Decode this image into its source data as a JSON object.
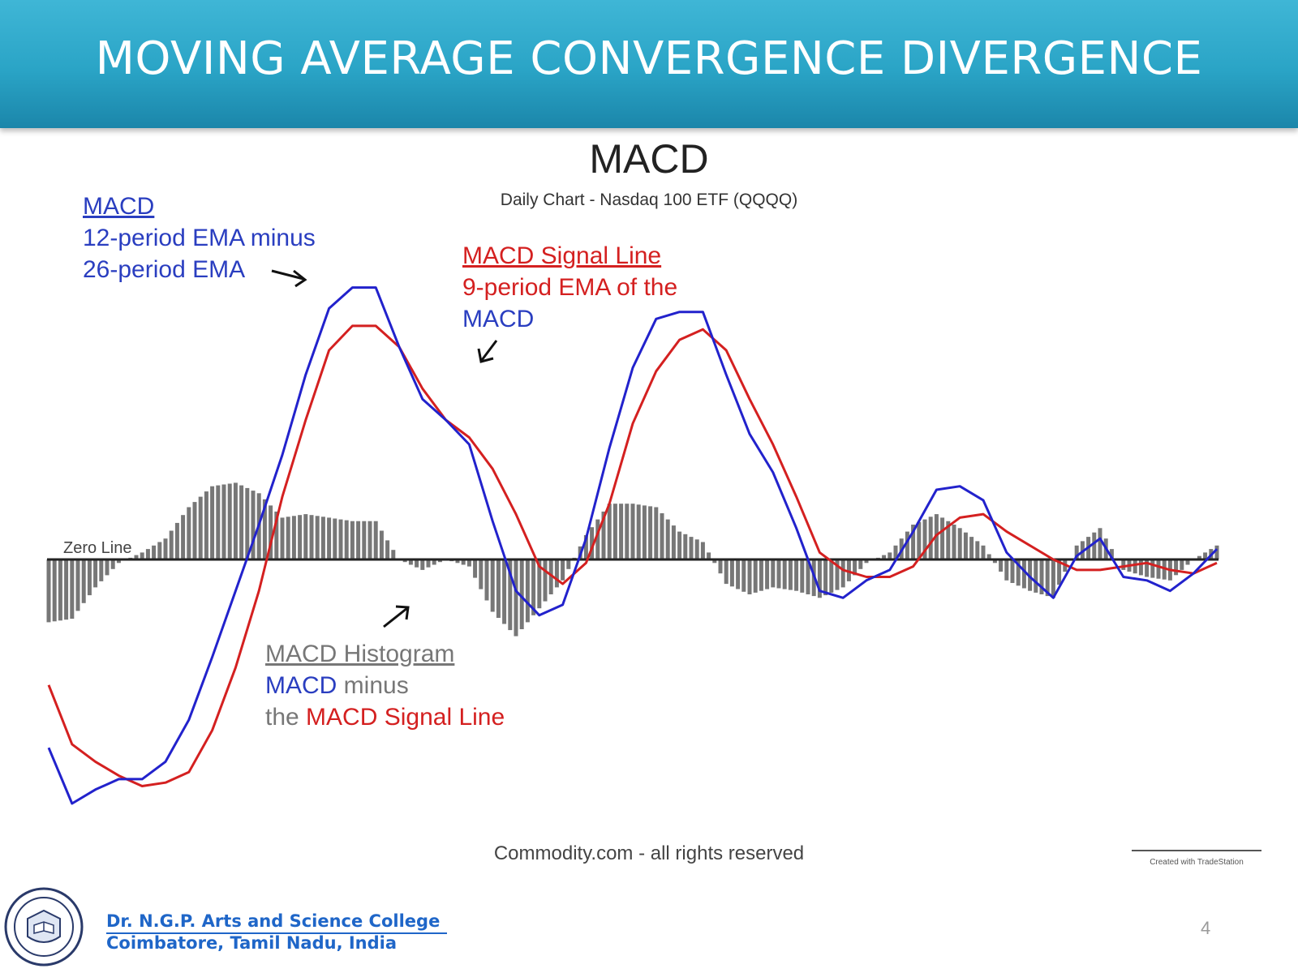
{
  "slide": {
    "title": "MOVING AVERAGE CONVERGENCE DIVERGENCE",
    "page_number": "4",
    "college_name": "Dr. N.G.P. Arts and Science College",
    "college_location": "Coimbatore, Tamil Nadu, India",
    "colors": {
      "header": "#2aa4c6",
      "college_text": "#1f66c8"
    }
  },
  "chart_data": {
    "type": "line",
    "title": "MACD",
    "subtitle": "Daily Chart - Nasdaq 100 ETF (QQQQ)",
    "xlabel": "",
    "ylabel": "",
    "ylim": [
      -8,
      10
    ],
    "grid": false,
    "zero_line_label": "Zero Line",
    "credit": "Commodity.com - all rights reserved",
    "small_credit": "Created with TradeStation",
    "annotations": {
      "macd": {
        "heading": "MACD",
        "line1": "12-period EMA minus",
        "line2": "26-period EMA"
      },
      "signal": {
        "heading": "MACD Signal Line",
        "line1": "9-period EMA of the",
        "line2": "MACD"
      },
      "histogram": {
        "heading": "MACD Histogram",
        "line2_a": "MACD",
        "line2_b": " minus",
        "line3_a": "the ",
        "line3_b": "MACD Signal Line"
      }
    },
    "x": [
      0,
      4,
      8,
      12,
      16,
      20,
      24,
      28,
      32,
      36,
      40,
      44,
      48,
      52,
      56,
      60,
      64,
      68,
      72,
      76,
      80,
      84,
      88,
      92,
      96,
      100,
      104,
      108,
      112,
      116,
      120,
      124,
      128,
      132,
      136,
      140,
      144,
      148,
      152,
      156,
      160,
      164,
      168,
      172,
      176,
      180,
      184,
      188,
      192,
      196,
      200
    ],
    "series": [
      {
        "name": "MACD",
        "color": "#2222cc",
        "values": [
          -5.4,
          -7.0,
          -6.6,
          -6.3,
          -6.3,
          -5.8,
          -4.6,
          -2.8,
          -0.9,
          1.0,
          3.0,
          5.3,
          7.2,
          7.8,
          7.8,
          6.1,
          4.6,
          4.0,
          3.3,
          1.1,
          -0.9,
          -1.6,
          -1.3,
          0.6,
          3.2,
          5.5,
          6.9,
          7.1,
          7.1,
          5.3,
          3.6,
          2.5,
          0.9,
          -0.9,
          -1.1,
          -0.6,
          -0.3,
          0.8,
          2.0,
          2.1,
          1.7,
          0.2,
          -0.5,
          -1.1,
          0.1,
          0.6,
          -0.5,
          -0.6,
          -0.9,
          -0.4,
          0.3
        ]
      },
      {
        "name": "MACD Signal Line",
        "color": "#d42020",
        "values": [
          -3.6,
          -5.3,
          -5.8,
          -6.2,
          -6.5,
          -6.4,
          -6.1,
          -4.9,
          -3.1,
          -0.9,
          1.8,
          4.0,
          6.0,
          6.7,
          6.7,
          6.1,
          4.9,
          4.0,
          3.5,
          2.6,
          1.3,
          -0.2,
          -0.7,
          -0.1,
          1.6,
          3.9,
          5.4,
          6.3,
          6.6,
          6.0,
          4.6,
          3.3,
          1.8,
          0.2,
          -0.3,
          -0.5,
          -0.5,
          -0.2,
          0.7,
          1.2,
          1.3,
          0.8,
          0.4,
          0.0,
          -0.3,
          -0.3,
          -0.2,
          -0.1,
          -0.3,
          -0.4,
          -0.1
        ]
      },
      {
        "name": "MACD Histogram",
        "color": "#777777",
        "values": [
          -1.8,
          -1.7,
          -0.8,
          -0.1,
          0.2,
          0.6,
          1.5,
          2.1,
          2.2,
          1.9,
          1.2,
          1.3,
          1.2,
          1.1,
          1.1,
          0.0,
          -0.3,
          0.0,
          -0.2,
          -1.5,
          -2.2,
          -1.4,
          -0.6,
          0.7,
          1.6,
          1.6,
          1.5,
          0.8,
          0.5,
          -0.7,
          -1.0,
          -0.8,
          -0.9,
          -1.1,
          -0.8,
          -0.1,
          0.2,
          1.0,
          1.3,
          0.9,
          0.4,
          -0.6,
          -0.9,
          -1.1,
          0.4,
          0.9,
          -0.3,
          -0.5,
          -0.6,
          0.0,
          0.4
        ]
      }
    ]
  }
}
